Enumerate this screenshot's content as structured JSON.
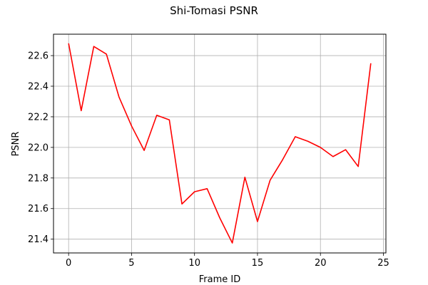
{
  "chart_data": {
    "type": "line",
    "title": "Shi-Tomasi PSNR",
    "xlabel": "Frame ID",
    "ylabel": "PSNR",
    "xlim": [
      -1.2,
      25.2
    ],
    "ylim": [
      21.31,
      22.74
    ],
    "xticks": [
      0,
      5,
      10,
      15,
      20,
      25
    ],
    "xtick_labels": [
      "0",
      "5",
      "10",
      "15",
      "20",
      "25"
    ],
    "yticks": [
      21.4,
      21.6,
      21.8,
      22.0,
      22.2,
      22.4,
      22.6
    ],
    "ytick_labels": [
      "21.4",
      "21.6",
      "21.8",
      "22.0",
      "22.2",
      "22.4",
      "22.6"
    ],
    "grid": true,
    "series": [
      {
        "color": "#ff0000",
        "x": [
          0,
          1,
          2,
          3,
          4,
          5,
          6,
          7,
          8,
          9,
          10,
          11,
          12,
          13,
          14,
          15,
          16,
          17,
          18,
          19,
          20,
          21,
          22,
          23,
          24
        ],
        "y": [
          22.68,
          22.24,
          22.66,
          22.61,
          22.33,
          22.14,
          21.98,
          22.21,
          22.18,
          21.63,
          21.71,
          21.73,
          21.54,
          21.375,
          21.805,
          21.515,
          21.785,
          21.92,
          22.07,
          22.04,
          22.0,
          21.94,
          21.985,
          21.875,
          22.55
        ]
      }
    ]
  }
}
